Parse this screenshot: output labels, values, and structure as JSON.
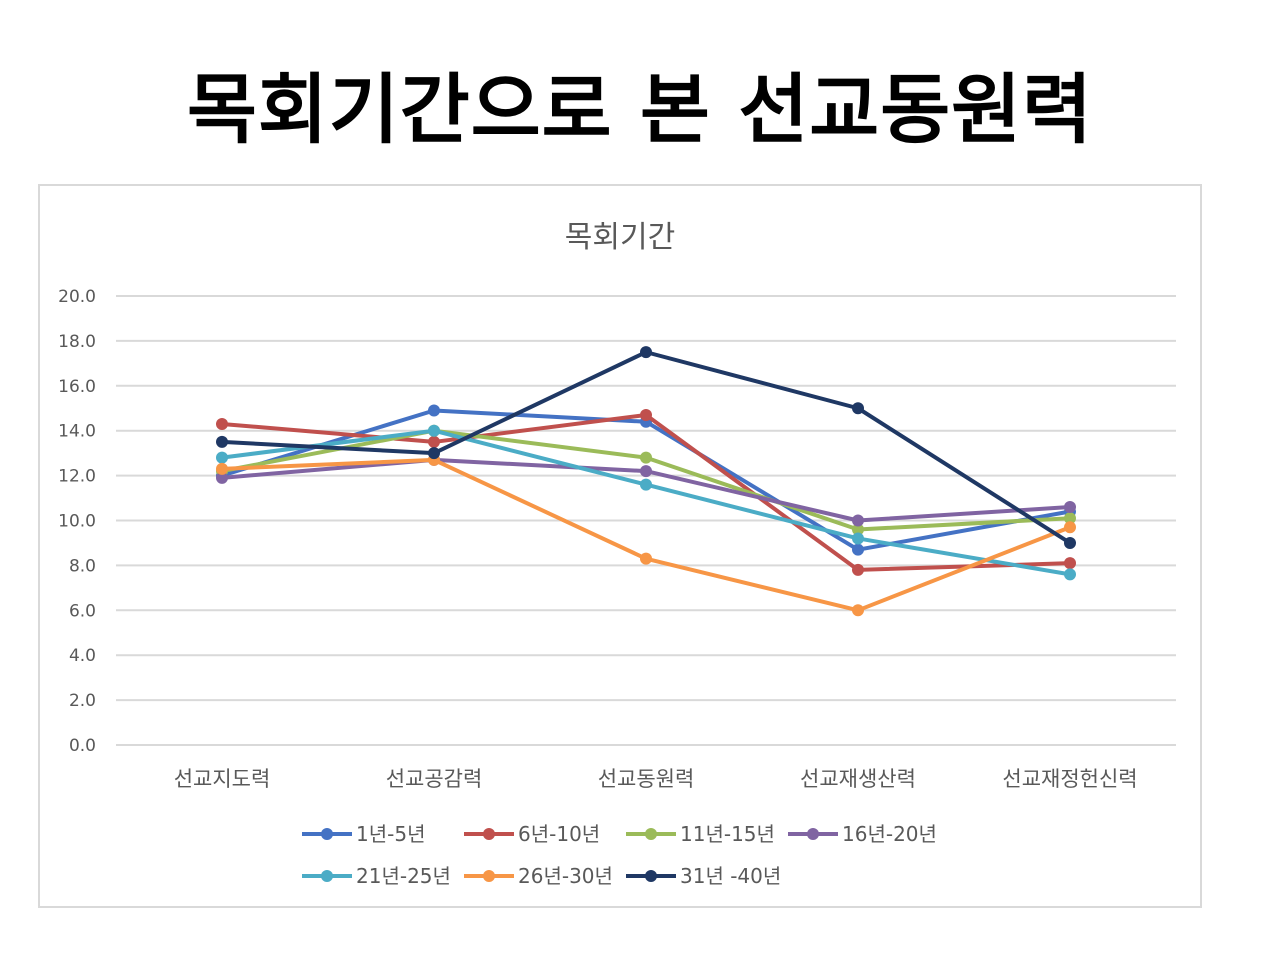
{
  "page": {
    "title": "목회기간으로 본 선교동원력"
  },
  "chart_data": {
    "type": "line",
    "title": "목회기간",
    "xlabel": "",
    "ylabel": "",
    "ylim": [
      0,
      20
    ],
    "yticks": [
      "0.0",
      "2.0",
      "4.0",
      "6.0",
      "8.0",
      "10.0",
      "12.0",
      "14.0",
      "16.0",
      "18.0",
      "20.0"
    ],
    "grid": true,
    "legend_position": "bottom",
    "categories": [
      "선교지도력",
      "선교공감력",
      "선교동원력",
      "선교재생산력",
      "선교재정헌신력"
    ],
    "series": [
      {
        "name": "1년-5년",
        "color": "#4472c4",
        "values": [
          12.0,
          14.9,
          14.4,
          8.7,
          10.4
        ]
      },
      {
        "name": "6년-10년",
        "color": "#c0504d",
        "values": [
          14.3,
          13.5,
          14.7,
          7.8,
          8.1
        ]
      },
      {
        "name": "11년-15년",
        "color": "#9bbb59",
        "values": [
          12.2,
          14.0,
          12.8,
          9.6,
          10.1
        ]
      },
      {
        "name": "16년-20년",
        "color": "#8064a2",
        "values": [
          11.9,
          12.7,
          12.2,
          10.0,
          10.6
        ]
      },
      {
        "name": "21년-25년",
        "color": "#4bacc6",
        "values": [
          12.8,
          14.0,
          11.6,
          9.2,
          7.6
        ]
      },
      {
        "name": "26년-30년",
        "color": "#f79646",
        "values": [
          12.3,
          12.7,
          8.3,
          6.0,
          9.7
        ]
      },
      {
        "name": "31년 -40년",
        "color": "#1f3864",
        "values": [
          13.5,
          13.0,
          17.5,
          15.0,
          9.0
        ]
      }
    ]
  }
}
